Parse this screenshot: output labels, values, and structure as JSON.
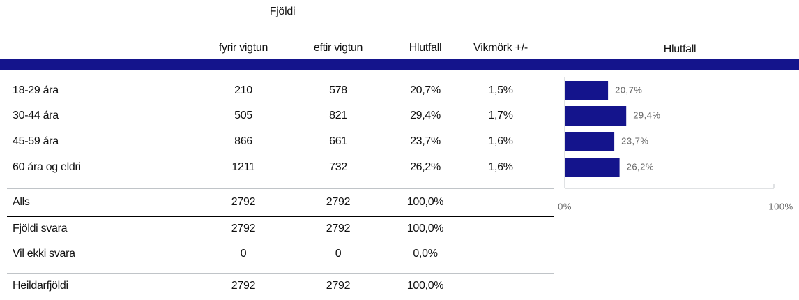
{
  "header": {
    "group": "Fjöldi",
    "columns": [
      "fyrir vigtun",
      "eftir vigtun",
      "Hlutfall",
      "Vikmörk +/-"
    ]
  },
  "table": {
    "rows": [
      [
        "18-29 ára",
        "210",
        "578",
        "20,7%",
        "1,5%"
      ],
      [
        "30-44 ára",
        "505",
        "821",
        "29,4%",
        "1,7%"
      ],
      [
        "45-59 ára",
        "866",
        "661",
        "23,7%",
        "1,6%"
      ],
      [
        "60 ára og eldri",
        "1211",
        "732",
        "26,2%",
        "1,6%"
      ],
      [
        "Alls",
        "2792",
        "2792",
        "100,0%"
      ],
      [
        "Fjöldi svara",
        "2792",
        "2792",
        "100,0%"
      ],
      [
        "Vil ekki svara",
        "0",
        "0",
        "0,0%"
      ],
      [
        "Heildarfjöldi",
        "2792",
        "2792",
        "100,0%"
      ]
    ]
  },
  "chart_data": {
    "type": "bar",
    "title": "Hlutfall",
    "values": [
      20.7,
      29.4,
      23.7,
      26.2
    ],
    "value_labels": [
      "20,7%",
      "29,4%",
      "23,7%",
      "26,2%"
    ],
    "color": "#14148c",
    "xlim": [
      0,
      100
    ],
    "xticks": [
      {
        "value": 0,
        "label": "0%"
      },
      {
        "value": 100,
        "label": "100%"
      }
    ]
  }
}
